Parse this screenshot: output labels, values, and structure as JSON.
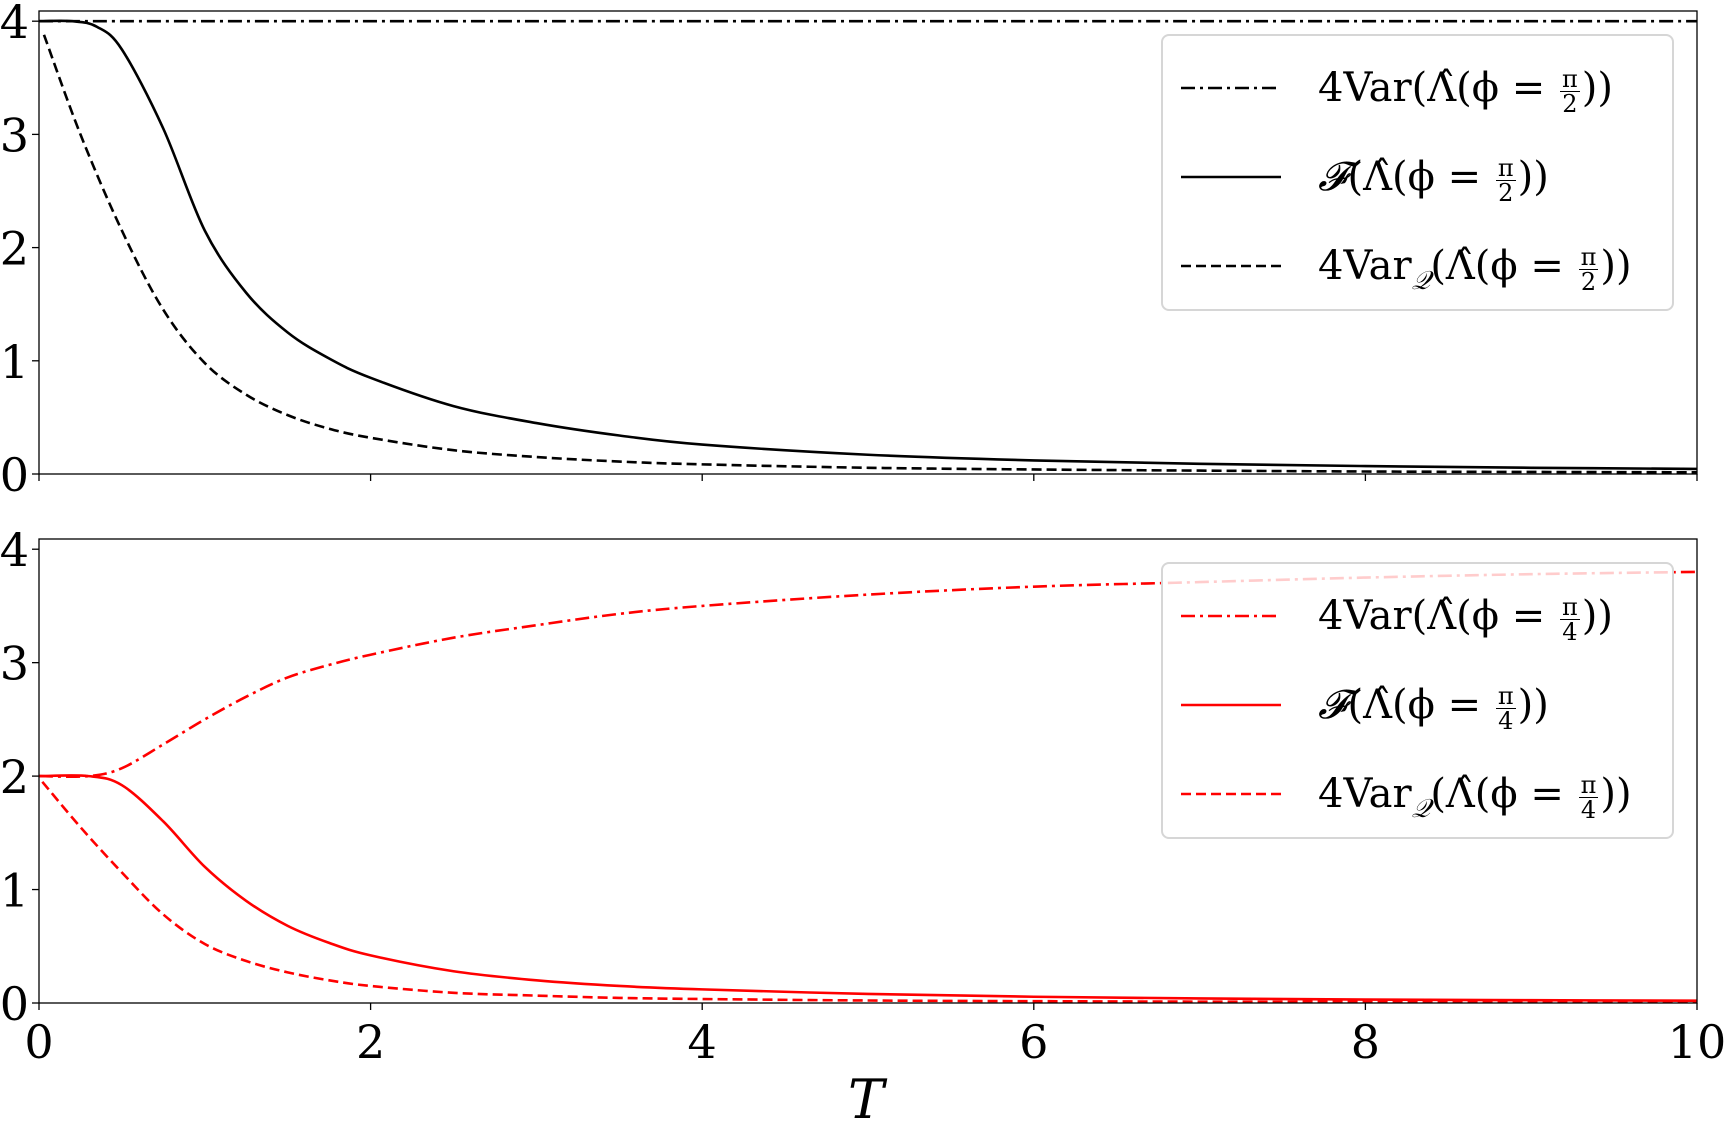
{
  "chart_data": [
    {
      "type": "line",
      "panel": "top",
      "xlim": [
        0,
        10
      ],
      "ylim": [
        0,
        4.09
      ],
      "xticks": [
        "0",
        "2",
        "4",
        "6",
        "8",
        "10"
      ],
      "xtick_labels_shown": false,
      "yticks": [
        "0",
        "1",
        "2",
        "3",
        "4"
      ],
      "grid": false,
      "legend_placement": "upper-right",
      "series": [
        {
          "name": "4Var(Λ̂(ϕ = π/2))",
          "color": "#000000",
          "style": "dashdot",
          "x": [
            0,
            10
          ],
          "y": [
            4,
            4
          ]
        },
        {
          "name": "F(Λ̂(ϕ = π/2))",
          "color": "#000000",
          "style": "solid",
          "x": [
            0,
            0.2,
            0.35,
            0.5,
            0.75,
            1,
            1.25,
            1.5,
            1.75,
            2,
            2.5,
            3,
            3.5,
            4,
            5,
            6,
            7,
            8,
            9,
            10
          ],
          "y": [
            4,
            4,
            3.95,
            3.75,
            3.05,
            2.15,
            1.6,
            1.25,
            1.02,
            0.85,
            0.6,
            0.45,
            0.34,
            0.26,
            0.17,
            0.12,
            0.09,
            0.07,
            0.055,
            0.045
          ]
        },
        {
          "name": "4VarQ(Λ̂(ϕ = π/2))",
          "color": "#000000",
          "style": "dashed",
          "x": [
            0.03,
            0.25,
            0.5,
            0.75,
            1,
            1.25,
            1.5,
            1.75,
            2,
            2.5,
            3,
            3.5,
            4,
            5,
            6,
            7,
            8,
            9,
            10
          ],
          "y": [
            3.88,
            3.0,
            2.15,
            1.45,
            0.98,
            0.7,
            0.52,
            0.4,
            0.32,
            0.21,
            0.15,
            0.11,
            0.085,
            0.055,
            0.04,
            0.03,
            0.022,
            0.018,
            0.015
          ]
        }
      ],
      "legend": [
        {
          "main": "4Var",
          "sub": "",
          "arg": "(Λ̂(ϕ = ",
          "num": "π",
          "den": "2",
          "close": "))"
        },
        {
          "main": "𝓕",
          "sub": "",
          "arg": "(Λ̂(ϕ = ",
          "num": "π",
          "den": "2",
          "close": "))"
        },
        {
          "main": "4Var",
          "sub": "𝒬",
          "arg": "(Λ̂(ϕ = ",
          "num": "π",
          "den": "2",
          "close": "))"
        }
      ]
    },
    {
      "type": "line",
      "panel": "bottom",
      "xlim": [
        0,
        10
      ],
      "ylim": [
        0,
        4.09
      ],
      "xticks": [
        "0",
        "2",
        "4",
        "6",
        "8",
        "10"
      ],
      "yticks": [
        "0",
        "1",
        "2",
        "3",
        "4"
      ],
      "xlabel": "T",
      "grid": false,
      "legend_placement": "upper-right",
      "series": [
        {
          "name": "4Var(Λ̂(ϕ = π/4))",
          "color": "#ff0000",
          "style": "dashdot",
          "x": [
            0,
            0.3,
            0.5,
            0.75,
            1,
            1.25,
            1.5,
            1.75,
            2,
            2.5,
            3,
            3.5,
            4,
            5,
            6,
            7,
            8,
            9,
            10
          ],
          "y": [
            2,
            2,
            2.07,
            2.28,
            2.5,
            2.7,
            2.87,
            2.98,
            3.07,
            3.22,
            3.33,
            3.43,
            3.5,
            3.6,
            3.67,
            3.71,
            3.75,
            3.78,
            3.8
          ]
        },
        {
          "name": "F(Λ̂(ϕ = π/4))",
          "color": "#ff0000",
          "style": "solid",
          "x": [
            0,
            0.3,
            0.5,
            0.75,
            1,
            1.25,
            1.5,
            1.75,
            2,
            2.5,
            3,
            3.5,
            4,
            5,
            6,
            7,
            8,
            9,
            10
          ],
          "y": [
            2,
            2,
            1.92,
            1.6,
            1.2,
            0.9,
            0.68,
            0.53,
            0.42,
            0.28,
            0.2,
            0.15,
            0.12,
            0.08,
            0.055,
            0.04,
            0.03,
            0.025,
            0.02
          ]
        },
        {
          "name": "4VarQ(Λ̂(ϕ = π/4))",
          "color": "#ff0000",
          "style": "dashed",
          "x": [
            0.02,
            0.25,
            0.5,
            0.75,
            1,
            1.25,
            1.5,
            1.75,
            2,
            2.5,
            3,
            3.5,
            4,
            5,
            6,
            7,
            8,
            9,
            10
          ],
          "y": [
            1.95,
            1.55,
            1.15,
            0.78,
            0.52,
            0.37,
            0.27,
            0.2,
            0.15,
            0.09,
            0.065,
            0.045,
            0.035,
            0.022,
            0.016,
            0.012,
            0.01,
            0.008,
            0.007
          ]
        }
      ],
      "legend": [
        {
          "main": "4Var",
          "sub": "",
          "arg": "(Λ̂(ϕ = ",
          "num": "π",
          "den": "4",
          "close": "))"
        },
        {
          "main": "𝓕",
          "sub": "",
          "arg": "(Λ̂(ϕ = ",
          "num": "π",
          "den": "4",
          "close": "))"
        },
        {
          "main": "4Var",
          "sub": "𝒬",
          "arg": "(Λ̂(ϕ = ",
          "num": "π",
          "den": "4",
          "close": "))"
        }
      ]
    }
  ]
}
